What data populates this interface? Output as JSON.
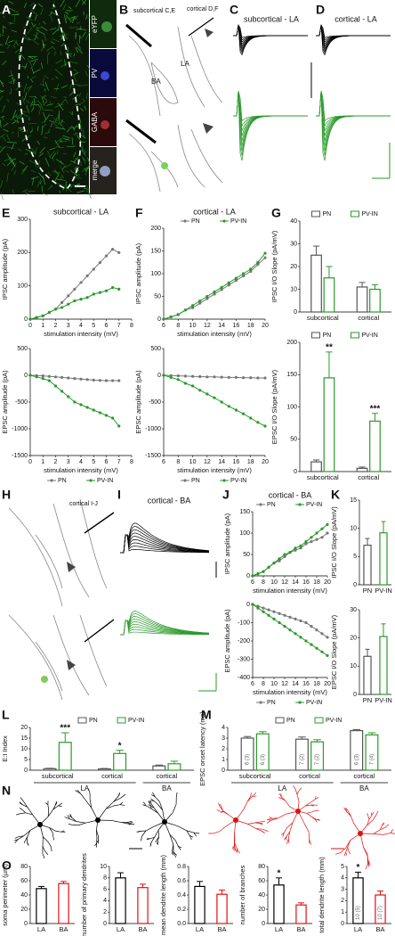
{
  "panels": {
    "letters": [
      "A",
      "B",
      "C",
      "D",
      "E",
      "F",
      "G",
      "H",
      "I",
      "J",
      "K",
      "L",
      "M",
      "N",
      "O"
    ],
    "image_a": {
      "channels": [
        "eYFP",
        "PV",
        "GABA",
        "merge"
      ]
    },
    "image_b": {
      "subcortical": "subcortical C,E",
      "cortical": "cortical D,F",
      "regions": [
        "LA",
        "BA"
      ]
    },
    "image_c": {
      "title": "subcortical - LA"
    },
    "image_d": {
      "title": "cortical - LA"
    },
    "image_h": {
      "cortical": "cortical I-J"
    },
    "image_i": {
      "title": "cortical - BA"
    }
  },
  "chart_data": [
    {
      "type": "line",
      "title": "subcortical - LA",
      "xlabel": "stimulation intensity (mV)",
      "ylabel": "IPSC amplitude (pA)",
      "x": [
        0,
        0.5,
        1,
        1.5,
        2,
        2.5,
        3,
        3.5,
        4,
        4.5,
        5,
        5.5,
        6,
        6.5,
        7
      ],
      "xlim": [
        0,
        8
      ],
      "xticks": [
        0,
        1,
        2,
        3,
        4,
        5,
        6,
        7,
        8
      ],
      "ylim": [
        0,
        300
      ],
      "yticks": [
        0,
        100,
        200,
        300
      ],
      "series": [
        {
          "color": "#777777",
          "values": [
            0,
            5,
            10,
            20,
            30,
            50,
            70,
            90,
            110,
            130,
            150,
            170,
            190,
            210,
            200
          ]
        },
        {
          "color": "#2a9a2a",
          "values": [
            0,
            5,
            10,
            20,
            30,
            35,
            45,
            55,
            60,
            65,
            75,
            80,
            85,
            95,
            90
          ]
        }
      ]
    },
    {
      "type": "line",
      "xlabel": "stimulation intensity (mV)",
      "ylabel": "EPSC amplitude (pA)",
      "legend": "bottom",
      "x": [
        0,
        0.5,
        1,
        1.5,
        2,
        2.5,
        3,
        3.5,
        4,
        4.5,
        5,
        5.5,
        6,
        6.5,
        7
      ],
      "xlim": [
        0,
        8
      ],
      "xticks": [
        0,
        1,
        2,
        3,
        4,
        5,
        6,
        7,
        8
      ],
      "ylim": [
        -1500,
        500
      ],
      "yticks": [
        -1500,
        -1000,
        -500,
        0,
        500
      ],
      "series": [
        {
          "name": "PN",
          "color": "#777777",
          "values": [
            0,
            -5,
            -10,
            -20,
            -30,
            -40,
            -50,
            -60,
            -70,
            -80,
            -90,
            -95,
            -100,
            -100,
            -100
          ]
        },
        {
          "name": "PV-IN",
          "color": "#2a9a2a",
          "values": [
            0,
            -30,
            -60,
            -100,
            -200,
            -300,
            -400,
            -500,
            -550,
            -600,
            -650,
            -700,
            -750,
            -800,
            -950
          ]
        }
      ]
    },
    {
      "type": "line",
      "title": "cortical - LA",
      "xlabel": "stimulation intensity (mV)",
      "ylabel": "IPSC amplitude (pA)",
      "legend": "top",
      "x": [
        6,
        7,
        8,
        9,
        10,
        11,
        12,
        13,
        14,
        15,
        16,
        17,
        18,
        19,
        20
      ],
      "xlim": [
        6,
        20
      ],
      "xticks": [
        6,
        8,
        10,
        12,
        14,
        16,
        18,
        20
      ],
      "ylim": [
        0,
        200
      ],
      "yticks": [
        0,
        50,
        100,
        150,
        200
      ],
      "series": [
        {
          "name": "PN",
          "color": "#777777",
          "values": [
            0,
            5,
            10,
            20,
            25,
            35,
            45,
            55,
            65,
            75,
            85,
            95,
            105,
            120,
            135
          ]
        },
        {
          "name": "PV-IN",
          "color": "#2a9a2a",
          "values": [
            0,
            5,
            10,
            20,
            30,
            40,
            50,
            60,
            70,
            80,
            90,
            100,
            110,
            125,
            145
          ]
        }
      ]
    },
    {
      "type": "line",
      "xlabel": "stimulation intensity (mV)",
      "ylabel": "EPSC amplitude (pA)",
      "legend": "bottom",
      "x": [
        6,
        7,
        8,
        9,
        10,
        11,
        12,
        13,
        14,
        15,
        16,
        17,
        18,
        19,
        20
      ],
      "xlim": [
        6,
        20
      ],
      "xticks": [
        6,
        8,
        10,
        12,
        14,
        16,
        18,
        20
      ],
      "ylim": [
        -1500,
        500
      ],
      "yticks": [
        -1500,
        -1000,
        -500,
        0,
        500
      ],
      "series": [
        {
          "name": "PN",
          "color": "#777777",
          "values": [
            0,
            -5,
            -10,
            -15,
            -20,
            -25,
            -30,
            -30,
            -35,
            -40,
            -40,
            -45,
            -45,
            -50,
            -50
          ]
        },
        {
          "name": "PV-IN",
          "color": "#2a9a2a",
          "values": [
            0,
            -40,
            -80,
            -150,
            -200,
            -280,
            -350,
            -420,
            -500,
            -580,
            -650,
            -720,
            -800,
            -880,
            -950
          ]
        }
      ]
    },
    {
      "type": "bar",
      "ylabel": "IPSC I/O Slope (pA/mV)",
      "legend": "top",
      "categories": [
        "subcortical",
        "cortical"
      ],
      "ylim": [
        0,
        40
      ],
      "yticks": [
        0,
        10,
        20,
        30,
        40
      ],
      "series": [
        {
          "name": "PN",
          "color": "#555555",
          "values": [
            25,
            11
          ],
          "errors": [
            4,
            2
          ]
        },
        {
          "name": "PV-IN",
          "color": "#2a9a2a",
          "values": [
            15,
            10
          ],
          "errors": [
            5,
            2
          ]
        }
      ]
    },
    {
      "type": "bar",
      "ylabel": "EPSC I/O Slope (pA/mV)",
      "legend": "top",
      "categories": [
        "subcortical",
        "cortical"
      ],
      "ylim": [
        0,
        200
      ],
      "yticks": [
        0,
        50,
        100,
        150,
        200
      ],
      "series": [
        {
          "name": "PN",
          "color": "#555555",
          "values": [
            15,
            5
          ],
          "errors": [
            3,
            2
          ]
        },
        {
          "name": "PV-IN",
          "color": "#2a9a2a",
          "values": [
            145,
            78
          ],
          "errors": [
            40,
            12
          ]
        }
      ],
      "annotations": [
        {
          "text": "**",
          "series": 1,
          "index": 0
        },
        {
          "text": "***",
          "series": 1,
          "index": 1
        }
      ]
    },
    {
      "type": "line",
      "title": "cortical - BA",
      "xlabel": "stimulation intensity (mV)",
      "ylabel": "IPSC amplitude (pA)",
      "legend": "top",
      "x": [
        6,
        7,
        8,
        9,
        10,
        11,
        12,
        13,
        14,
        15,
        16,
        17,
        18,
        19,
        20
      ],
      "xlim": [
        6,
        20
      ],
      "xticks": [
        6,
        8,
        10,
        12,
        14,
        16,
        18,
        20
      ],
      "ylim": [
        0,
        150
      ],
      "yticks": [
        0,
        50,
        100,
        150
      ],
      "series": [
        {
          "name": "PN",
          "color": "#777777",
          "values": [
            0,
            5,
            10,
            20,
            30,
            35,
            45,
            55,
            60,
            65,
            75,
            80,
            85,
            90,
            100
          ]
        },
        {
          "name": "PV-IN",
          "color": "#2a9a2a",
          "values": [
            0,
            5,
            10,
            20,
            30,
            40,
            50,
            55,
            65,
            70,
            80,
            90,
            100,
            110,
            120
          ]
        }
      ]
    },
    {
      "type": "line",
      "xlabel": "stimulation intensity (mV)",
      "ylabel": "EPSC amplitude (pA)",
      "legend": "bottom",
      "x": [
        6,
        7,
        8,
        9,
        10,
        11,
        12,
        13,
        14,
        15,
        16,
        17,
        18,
        19,
        20
      ],
      "xlim": [
        6,
        20
      ],
      "xticks": [
        6,
        8,
        10,
        12,
        14,
        16,
        18,
        20
      ],
      "ylim": [
        -400,
        0
      ],
      "yticks": [
        -400,
        -300,
        -200,
        -100,
        0
      ],
      "series": [
        {
          "name": "PN",
          "color": "#777777",
          "values": [
            0,
            -10,
            -20,
            -30,
            -40,
            -50,
            -60,
            -70,
            -80,
            -90,
            -100,
            -120,
            -140,
            -160,
            -180
          ]
        },
        {
          "name": "PV-IN",
          "color": "#2a9a2a",
          "values": [
            0,
            -20,
            -40,
            -60,
            -80,
            -100,
            -120,
            -140,
            -160,
            -180,
            -200,
            -220,
            -240,
            -260,
            -280
          ]
        }
      ]
    },
    {
      "type": "bar",
      "ylabel": "IPSC I/O Slope (pA/mV)",
      "categories": [
        "PN",
        "PV-IN"
      ],
      "colors": [
        "#555555",
        "#2a9a2a"
      ],
      "ylim": [
        0,
        15
      ],
      "yticks": [
        0,
        5,
        10,
        15
      ],
      "values": [
        7,
        9.2
      ],
      "errors": [
        1.2,
        2
      ]
    },
    {
      "type": "bar",
      "ylabel": "EPSC I/O Slope (pA/mV)",
      "categories": [
        "PN",
        "PV-IN"
      ],
      "colors": [
        "#555555",
        "#2a9a2a"
      ],
      "ylim": [
        0,
        30
      ],
      "yticks": [
        0,
        10,
        20,
        30
      ],
      "values": [
        13.5,
        20.5
      ],
      "errors": [
        2.5,
        4.5
      ]
    },
    {
      "type": "bar",
      "ylabel": "E:I Index",
      "legend": "top",
      "categories": [
        "subcortical",
        "cortical",
        "cortical"
      ],
      "groups": [
        {
          "label": "LA",
          "categories": [
            0,
            1
          ]
        },
        {
          "label": "BA",
          "categories": [
            2
          ]
        }
      ],
      "ylim": [
        0,
        20
      ],
      "yticks": [
        0,
        5,
        10,
        15,
        20
      ],
      "series": [
        {
          "name": "PN",
          "color": "#555555",
          "values": [
            0.7,
            0.6,
            2
          ],
          "errors": [
            0.2,
            0.2,
            0.4
          ]
        },
        {
          "name": "PV-IN",
          "color": "#2a9a2a",
          "values": [
            13,
            7.8,
            3
          ],
          "errors": [
            4.5,
            1.5,
            1.2
          ]
        }
      ],
      "annotations": [
        {
          "text": "***",
          "series": 1,
          "index": 0
        },
        {
          "text": "*",
          "series": 1,
          "index": 1
        }
      ]
    },
    {
      "type": "bar",
      "ylabel": "EPSC onset latency (ms)",
      "legend": "top",
      "categories": [
        "subcortical",
        "cortical",
        "cortical"
      ],
      "groups": [
        {
          "label": "LA",
          "categories": [
            0,
            1
          ]
        },
        {
          "label": "BA",
          "categories": [
            2
          ]
        }
      ],
      "ylim": [
        0,
        4
      ],
      "yticks": [
        0,
        1,
        2,
        3,
        4
      ],
      "series": [
        {
          "name": "PN",
          "color": "#555555",
          "values": [
            3.0,
            2.9,
            3.7
          ],
          "errors": [
            0.15,
            0.2,
            0.1
          ],
          "n_labels": [
            "6 (3)",
            "7 (2)",
            "6 (3)"
          ]
        },
        {
          "name": "PV-IN",
          "color": "#2a9a2a",
          "values": [
            3.4,
            2.65,
            3.3
          ],
          "errors": [
            0.2,
            0.2,
            0.2
          ],
          "n_labels": [
            "6 (3)",
            "7 (2)",
            "7 (4)"
          ]
        }
      ]
    },
    {
      "type": "bar",
      "ylabel": "soma perimeter (µm)",
      "categories": [
        "LA",
        "BA"
      ],
      "colors": [
        "#000000",
        "#e01010"
      ],
      "ylim": [
        0,
        80
      ],
      "yticks": [
        0,
        20,
        40,
        60,
        80
      ],
      "values": [
        49,
        56
      ],
      "errors": [
        3,
        3
      ]
    },
    {
      "type": "bar",
      "ylabel": "number of primary dendrites",
      "categories": [
        "LA",
        "BA"
      ],
      "colors": [
        "#000000",
        "#e01010"
      ],
      "ylim": [
        0,
        10
      ],
      "yticks": [
        0,
        2,
        4,
        6,
        8,
        10
      ],
      "values": [
        8,
        6.3
      ],
      "errors": [
        0.9,
        0.6
      ]
    },
    {
      "type": "bar",
      "ylabel": "mean dendrite length (mm)",
      "categories": [
        "LA",
        "BA"
      ],
      "colors": [
        "#000000",
        "#e01010"
      ],
      "ylim": [
        0,
        0.8
      ],
      "yticks": [
        {
          "value": 0,
          "label": "0.0"
        },
        0.2,
        0.4,
        0.6,
        0.8
      ],
      "values": [
        0.52,
        0.41
      ],
      "errors": [
        0.07,
        0.06
      ]
    },
    {
      "type": "bar",
      "ylabel": "number of branches",
      "categories": [
        "LA",
        "BA"
      ],
      "colors": [
        "#000000",
        "#e01010"
      ],
      "ylim": [
        0,
        80
      ],
      "yticks": [
        0,
        20,
        40,
        60,
        80
      ],
      "values": [
        54,
        26
      ],
      "errors": [
        10,
        3
      ],
      "annotations": [
        {
          "text": "*",
          "index": 0
        }
      ]
    },
    {
      "type": "bar",
      "ylabel": "total dendrite length (mm)",
      "categories": [
        "LA",
        "BA"
      ],
      "colors": [
        "#000000",
        "#e01010"
      ],
      "ylim": [
        0,
        5
      ],
      "yticks": [
        0,
        1,
        2,
        3,
        4,
        5
      ],
      "values": [
        4.0,
        2.5
      ],
      "errors": [
        0.5,
        0.35
      ],
      "n_labels": [
        "10 (5)",
        "10 (7)"
      ],
      "annotations": [
        {
          "text": "*",
          "index": 0
        }
      ]
    }
  ]
}
